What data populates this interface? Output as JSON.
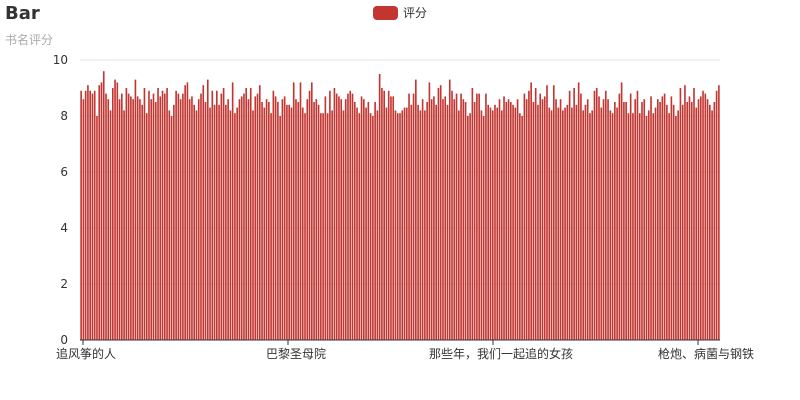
{
  "title": "Bar",
  "subtitle": "书名评分",
  "colors": {
    "bar": "#c23531",
    "axis": "#333333",
    "grid": "#e6e6e6"
  },
  "chart_data": {
    "type": "bar",
    "title": "Bar",
    "subtitle": "书名评分",
    "legend": {
      "position": "top-center",
      "entries": [
        "评分"
      ]
    },
    "ylim": [
      0,
      10
    ],
    "yticks": [
      0,
      2,
      4,
      6,
      8,
      10
    ],
    "grid": true,
    "xtick_labels": [
      "追风筝的人",
      "巴黎圣母院",
      "那些年，我们一起追的女孩",
      "枪炮、病菌与钢铁"
    ],
    "series": [
      {
        "name": "评分",
        "values": [
          8.9,
          8.6,
          8.9,
          9.1,
          8.9,
          8.8,
          8.9,
          8.0,
          9.1,
          9.2,
          9.6,
          8.8,
          8.6,
          8.2,
          9.0,
          9.3,
          9.2,
          8.6,
          8.8,
          8.2,
          9.0,
          8.8,
          8.7,
          8.6,
          9.3,
          8.7,
          8.6,
          8.4,
          9.0,
          8.1,
          8.9,
          8.6,
          8.8,
          8.5,
          9.0,
          8.7,
          8.9,
          8.8,
          9.0,
          8.2,
          8.0,
          8.4,
          8.9,
          8.8,
          8.6,
          8.8,
          9.1,
          9.2,
          8.6,
          8.7,
          8.4,
          8.2,
          8.6,
          8.8,
          9.1,
          8.5,
          9.3,
          8.3,
          8.9,
          8.4,
          8.9,
          8.4,
          8.8,
          9.0,
          8.4,
          8.6,
          8.2,
          9.2,
          8.1,
          8.3,
          8.6,
          8.7,
          8.8,
          9.0,
          8.6,
          9.0,
          8.2,
          8.7,
          8.8,
          9.1,
          8.5,
          8.3,
          8.6,
          8.5,
          8.1,
          8.9,
          8.7,
          8.5,
          8.0,
          8.6,
          8.7,
          8.4,
          8.4,
          8.3,
          9.2,
          8.6,
          8.5,
          9.2,
          8.3,
          8.1,
          8.6,
          8.9,
          9.2,
          8.5,
          8.6,
          8.4,
          8.1,
          8.1,
          8.7,
          8.1,
          8.9,
          8.2,
          9.0,
          8.8,
          8.7,
          8.6,
          8.2,
          8.6,
          8.8,
          8.9,
          8.8,
          8.5,
          8.3,
          8.1,
          8.7,
          8.6,
          8.3,
          8.5,
          8.1,
          8.0,
          8.5,
          8.2,
          9.5,
          9.0,
          8.9,
          8.3,
          8.9,
          8.7,
          8.7,
          8.2,
          8.1,
          8.1,
          8.2,
          8.3,
          8.3,
          8.8,
          8.4,
          8.8,
          9.3,
          8.4,
          8.2,
          8.6,
          8.2,
          8.5,
          9.2,
          8.6,
          8.7,
          8.4,
          9.0,
          9.1,
          8.6,
          8.7,
          8.4,
          9.3,
          8.9,
          8.6,
          8.8,
          8.2,
          8.8,
          8.6,
          8.5,
          8.0,
          8.1,
          9.0,
          8.5,
          8.8,
          8.8,
          8.2,
          8.0,
          8.8,
          8.4,
          8.3,
          8.2,
          8.4,
          8.3,
          8.6,
          8.2,
          8.7,
          8.5,
          8.6,
          8.5,
          8.4,
          8.3,
          8.6,
          8.1,
          8.0,
          8.8,
          8.6,
          8.9,
          9.2,
          8.5,
          9.0,
          8.4,
          8.8,
          8.6,
          8.7,
          9.1,
          8.3,
          8.2,
          9.1,
          8.6,
          8.3,
          8.6,
          8.2,
          8.3,
          8.4,
          8.9,
          8.3,
          9.0,
          8.4,
          9.2,
          8.8,
          8.2,
          8.4,
          8.6,
          8.1,
          8.2,
          8.9,
          9.0,
          8.7,
          8.3,
          8.6,
          8.9,
          8.6,
          8.2,
          8.1,
          8.5,
          8.3,
          8.8,
          9.2,
          8.5,
          8.5,
          8.1,
          8.8,
          8.1,
          8.6,
          8.9,
          8.1,
          8.5,
          8.6,
          8.0,
          8.2,
          8.7,
          8.1,
          8.3,
          8.6,
          8.5,
          8.7,
          8.8,
          8.4,
          8.1,
          8.7,
          8.4,
          8.0,
          8.2,
          9.0,
          8.4,
          9.1,
          8.5,
          8.7,
          8.5,
          9.0,
          8.3,
          8.6,
          8.7,
          8.9,
          8.8,
          8.6,
          8.4,
          8.2,
          8.5,
          8.9,
          9.1
        ]
      }
    ]
  }
}
